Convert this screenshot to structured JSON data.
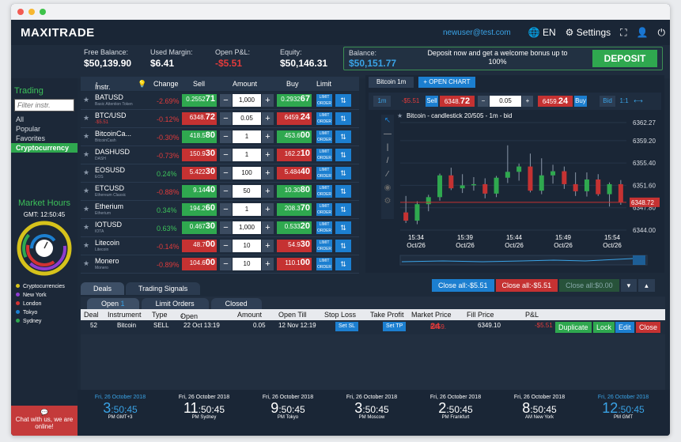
{
  "app": {
    "logo": "MAXITRADE",
    "email": "newuser@test.com",
    "lang": "EN",
    "settings": "Settings"
  },
  "info": {
    "free_balance_label": "Free Balance:",
    "free_balance": "$50,139.90",
    "used_margin_label": "Used Margin:",
    "used_margin": "$6.41",
    "open_pl_label": "Open P&L:",
    "open_pl": "-$5.51",
    "equity_label": "Equity:",
    "equity": "$50,146.31",
    "balance_label": "Balance:",
    "balance": "$50,151.77",
    "bonus_text": "Deposit now and get a welcome bonus up to 100%",
    "deposit": "DEPOSIT"
  },
  "sidebar": {
    "title": "Trading",
    "filter_placeholder": "Filter instr.",
    "items": [
      "All",
      "Popular",
      "Favorites",
      "Cryptocurrency"
    ],
    "market_hours": "Market Hours",
    "gmt": "GMT: 12:50:45",
    "legend": [
      "Cryptocurrencies",
      "New York",
      "London",
      "Tokyo",
      "Sydney"
    ],
    "legend_colors": [
      "#d6c21b",
      "#8e3ccf",
      "#d23232",
      "#1c7fd0",
      "#2fa84f"
    ],
    "chat": "Chat with us, we are online!"
  },
  "instruments_header": {
    "instr": "Instr.",
    "change": "Change",
    "sell": "Sell",
    "amount": "Amount",
    "buy": "Buy",
    "limit": "Limit"
  },
  "instruments": [
    {
      "name": "BATUSD",
      "sub": "Basic Attention Token",
      "change": "-2.69%",
      "up": false,
      "sell_pre": "0.2552",
      "sell_big": "71",
      "buy_pre": "0.2932",
      "buy_big": "67",
      "amount": "1,000",
      "sell_red": false,
      "buy_red": false
    },
    {
      "name": "BTC/USD",
      "sub": "-$5.51",
      "change": "-0.12%",
      "up": false,
      "sell_pre": "6348.",
      "sell_big": "72",
      "buy_pre": "6459.",
      "buy_big": "24",
      "amount": "0.05",
      "sell_red": true,
      "buy_red": true
    },
    {
      "name": "BitcoinCa...",
      "sub": "BitcoinCash",
      "change": "-0.30%",
      "up": false,
      "sell_pre": "418.5",
      "sell_big": "80",
      "buy_pre": "453.6",
      "buy_big": "00",
      "amount": "1",
      "sell_red": false,
      "buy_red": false
    },
    {
      "name": "DASHUSD",
      "sub": "DASH",
      "change": "-0.73%",
      "up": false,
      "sell_pre": "150.9",
      "sell_big": "30",
      "buy_pre": "162.2",
      "buy_big": "10",
      "amount": "1",
      "sell_red": true,
      "buy_red": true
    },
    {
      "name": "EOSUSD",
      "sub": "EOS",
      "change": "0.24%",
      "up": true,
      "sell_pre": "5.422",
      "sell_big": "30",
      "buy_pre": "5.484",
      "buy_big": "40",
      "amount": "100",
      "sell_red": true,
      "buy_red": true
    },
    {
      "name": "ETCUSD",
      "sub": "Ethereum Classic",
      "change": "-0.88%",
      "up": false,
      "sell_pre": "9.14",
      "sell_big": "40",
      "buy_pre": "10.30",
      "buy_big": "80",
      "amount": "50",
      "sell_red": false,
      "buy_red": false
    },
    {
      "name": "Etherium",
      "sub": "Etherium",
      "change": "0.34%",
      "up": true,
      "sell_pre": "194.2",
      "sell_big": "60",
      "buy_pre": "208.3",
      "buy_big": "70",
      "amount": "1",
      "sell_red": false,
      "buy_red": false
    },
    {
      "name": "IOTUSD",
      "sub": "IOTA",
      "change": "0.63%",
      "up": true,
      "sell_pre": "0.467",
      "sell_big": "30",
      "buy_pre": "0.533",
      "buy_big": "20",
      "amount": "1,000",
      "sell_red": false,
      "buy_red": false
    },
    {
      "name": "Litecoin",
      "sub": "Litecoin",
      "change": "-0.14%",
      "up": false,
      "sell_pre": "48.7",
      "sell_big": "00",
      "buy_pre": "54.9",
      "buy_big": "30",
      "amount": "10",
      "sell_red": true,
      "buy_red": true
    },
    {
      "name": "Monero",
      "sub": "Monero",
      "change": "-0.89%",
      "up": false,
      "sell_pre": "104.6",
      "sell_big": "00",
      "buy_pre": "110.1",
      "buy_big": "00",
      "amount": "10",
      "sell_red": true,
      "buy_red": true
    }
  ],
  "chart": {
    "tab": "Bitcoin 1m",
    "open_chart": "+ OPEN CHART",
    "title": "Bitcoin - candlestick 20/505 - 1m - bid",
    "pl": "-$5.51",
    "sell_label": "Sell",
    "buy_label": "Buy",
    "qty": "0.05",
    "sell_pre": "6348.",
    "sell_big": "72",
    "buy_pre": "6459.",
    "buy_big": "24",
    "bid": "Bid",
    "tf1": "1m",
    "tf2": "1:1",
    "yticks": [
      "6362.27",
      "6359.20",
      "6355.40",
      "6351.60",
      "6347.80",
      "6344.00"
    ],
    "current": "6348.72",
    "xticks": [
      [
        "15:34",
        "Oct/26"
      ],
      [
        "15:39",
        "Oct/26"
      ],
      [
        "15:44",
        "Oct/26"
      ],
      [
        "15:49",
        "Oct/26"
      ],
      [
        "15:54",
        "Oct/26"
      ]
    ]
  },
  "chart_data": {
    "type": "candlestick",
    "title": "Bitcoin - candlestick 20/505 - 1m - bid",
    "ylim": [
      6344.0,
      6362.27
    ],
    "current_price": 6348.72,
    "candles": [
      {
        "o": 6347.0,
        "h": 6349.8,
        "l": 6345.2,
        "c": 6345.6
      },
      {
        "o": 6345.6,
        "h": 6348.9,
        "l": 6345.0,
        "c": 6348.4
      },
      {
        "o": 6348.4,
        "h": 6350.0,
        "l": 6347.2,
        "c": 6349.6
      },
      {
        "o": 6349.6,
        "h": 6353.6,
        "l": 6349.0,
        "c": 6353.3
      },
      {
        "o": 6353.3,
        "h": 6354.6,
        "l": 6350.8,
        "c": 6351.1
      },
      {
        "o": 6351.1,
        "h": 6353.5,
        "l": 6350.3,
        "c": 6351.6
      },
      {
        "o": 6351.6,
        "h": 6353.0,
        "l": 6350.7,
        "c": 6351.8
      },
      {
        "o": 6351.8,
        "h": 6352.8,
        "l": 6349.4,
        "c": 6350.2
      },
      {
        "o": 6350.2,
        "h": 6353.2,
        "l": 6349.6,
        "c": 6352.9
      },
      {
        "o": 6352.9,
        "h": 6358.4,
        "l": 6352.0,
        "c": 6353.9
      },
      {
        "o": 6353.9,
        "h": 6355.3,
        "l": 6352.4,
        "c": 6354.8
      },
      {
        "o": 6354.8,
        "h": 6357.0,
        "l": 6350.4,
        "c": 6350.7
      },
      {
        "o": 6350.7,
        "h": 6356.2,
        "l": 6350.1,
        "c": 6353.3
      },
      {
        "o": 6353.3,
        "h": 6355.1,
        "l": 6351.9,
        "c": 6354.0
      },
      {
        "o": 6354.0,
        "h": 6354.8,
        "l": 6351.0,
        "c": 6351.8
      },
      {
        "o": 6351.8,
        "h": 6353.8,
        "l": 6349.8,
        "c": 6350.6
      },
      {
        "o": 6350.6,
        "h": 6353.8,
        "l": 6349.7,
        "c": 6352.6
      },
      {
        "o": 6352.6,
        "h": 6353.5,
        "l": 6349.8,
        "c": 6350.1
      },
      {
        "o": 6350.1,
        "h": 6352.1,
        "l": 6348.0,
        "c": 6351.8
      },
      {
        "o": 6351.8,
        "h": 6352.5,
        "l": 6348.3,
        "c": 6348.7
      }
    ]
  },
  "deals": {
    "tabs": [
      "Deals",
      "Trading Signals"
    ],
    "subtabs": [
      "Open",
      "Limit Orders",
      "Closed"
    ],
    "open_count": "1",
    "close_all": "Close all:-$5.51",
    "close_all_loss": "Close all:-$5.51",
    "close_all_profit": "Close all:$0.00",
    "headers": [
      "Deal",
      "Instrument",
      "Type",
      "Open Time",
      "Amount",
      "Open Till",
      "Stop Loss",
      "Take Profit",
      "Market Price",
      "Fill Price",
      "P&L"
    ],
    "row": {
      "deal": "52",
      "instrument": "Bitcoin",
      "type": "SELL",
      "open_time": "22 Oct 13:19",
      "amount": "0.05",
      "open_till": "12 Nov 12:19",
      "sl": "Set SL",
      "tp": "Set TP",
      "market_pre": "6459.",
      "market_big": "24",
      "fill": "6349.10",
      "pl": "-$5.51"
    },
    "actions": [
      "Duplicate",
      "Lock",
      "Edit",
      "Close"
    ]
  },
  "clocks": [
    {
      "date": "Fri, 26 October 2018",
      "h": "3",
      "m": ":50:45",
      "ampm": "PM",
      "city": "GMT+3",
      "accent": true
    },
    {
      "date": "Fri, 26 October 2018",
      "h": "11",
      "m": ":50:45",
      "ampm": "PM",
      "city": "Sydney",
      "accent": false
    },
    {
      "date": "Fri, 26 October 2018",
      "h": "9",
      "m": ":50:45",
      "ampm": "PM",
      "city": "Tokyo",
      "accent": false
    },
    {
      "date": "Fri, 26 October 2018",
      "h": "3",
      "m": ":50:45",
      "ampm": "PM",
      "city": "Moscow",
      "accent": false
    },
    {
      "date": "Fri, 26 October 2018",
      "h": "2",
      "m": ":50:45",
      "ampm": "PM",
      "city": "Frankfurt",
      "accent": false
    },
    {
      "date": "Fri, 26 October 2018",
      "h": "8",
      "m": ":50:45",
      "ampm": "AM",
      "city": "New York",
      "accent": false
    },
    {
      "date": "Fri, 26 October 2018",
      "h": "12",
      "m": ":50:45",
      "ampm": "PM",
      "city": "GMT",
      "accent": true
    }
  ]
}
